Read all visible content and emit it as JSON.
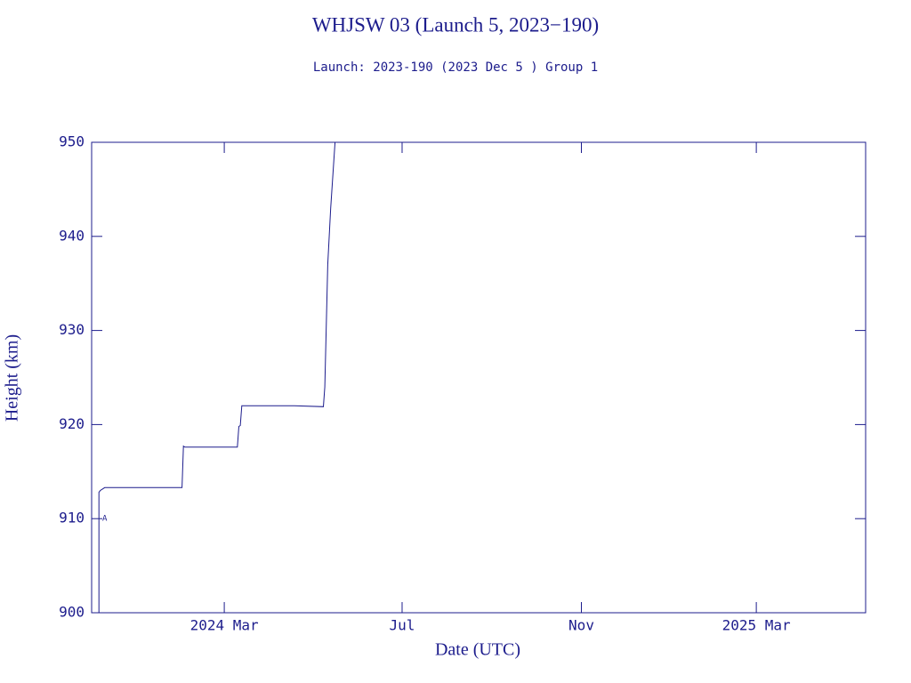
{
  "chart_data": {
    "type": "line",
    "title": "WHJSW 03 (Launch 5, 2023−190)",
    "subtitle": "Launch: 2023-190  (2023 Dec  5 )  Group 1",
    "x_label": "Date (UTC)",
    "y_label": "Height (km)",
    "x": [
      1,
      1,
      2,
      5,
      58,
      59,
      60,
      96,
      97,
      98,
      99,
      135,
      155,
      156,
      158,
      160,
      163
    ],
    "series": [
      {
        "name": "Height",
        "color": "#1c1c8c",
        "values": [
          900,
          912.8,
          913.0,
          913.3,
          913.3,
          917.7,
          917.6,
          917.6,
          919.8,
          919.9,
          922.0,
          922.0,
          921.9,
          924,
          937,
          943,
          950
        ]
      }
    ],
    "annotations": [
      {
        "text": "A",
        "x": 5,
        "y": 910
      }
    ],
    "xlim": [
      -4,
      527
    ],
    "xticks": [
      {
        "value": 87,
        "label": "2024 Mar"
      },
      {
        "value": 209,
        "label": "Jul"
      },
      {
        "value": 332,
        "label": "Nov"
      },
      {
        "value": 452,
        "label": "2025 Mar"
      }
    ],
    "ylim": [
      900,
      950
    ],
    "yticks": [
      900,
      910,
      920,
      930,
      940,
      950
    ]
  }
}
